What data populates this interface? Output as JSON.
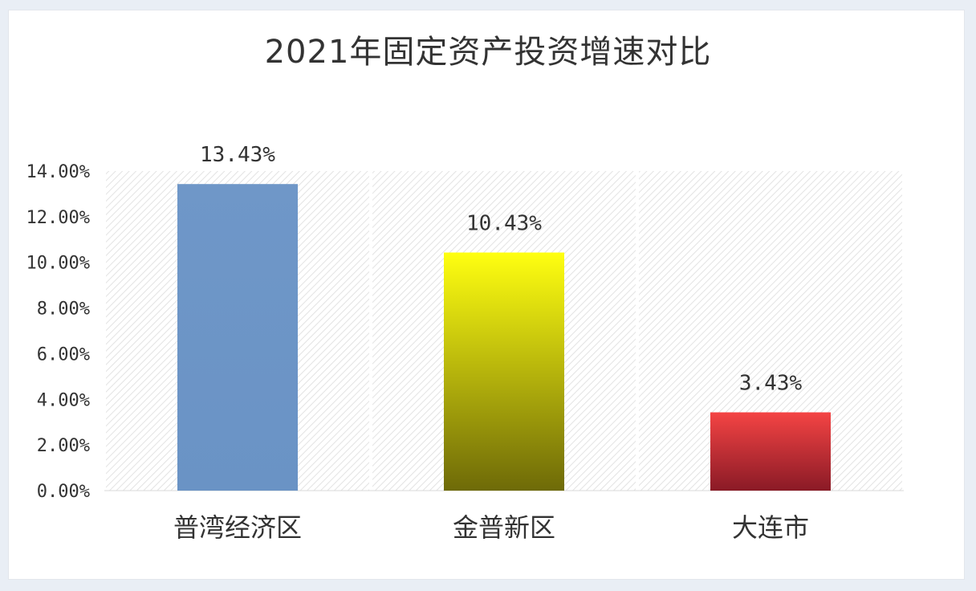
{
  "chart_data": {
    "type": "bar",
    "title": "2021年固定资产投资增速对比",
    "categories": [
      "普湾经济区",
      "金普新区",
      "大连市"
    ],
    "values": [
      13.43,
      10.43,
      3.43
    ],
    "data_labels": [
      "13.43%",
      "10.43%",
      "3.43%"
    ],
    "ylim": [
      0,
      14
    ],
    "yticks": [
      0,
      2,
      4,
      6,
      8,
      10,
      12,
      14
    ],
    "ytick_labels": [
      "0.00%",
      "2.00%",
      "4.00%",
      "6.00%",
      "8.00%",
      "10.00%",
      "12.00%",
      "14.00%"
    ],
    "bar_colors": [
      {
        "top": "#6f97c8",
        "bottom": "#6a93c5"
      },
      {
        "top": "#ffff10",
        "bottom": "#6e6a08"
      },
      {
        "top": "#f44444",
        "bottom": "#8a1a26"
      }
    ],
    "grid": false,
    "background": "hatched"
  }
}
